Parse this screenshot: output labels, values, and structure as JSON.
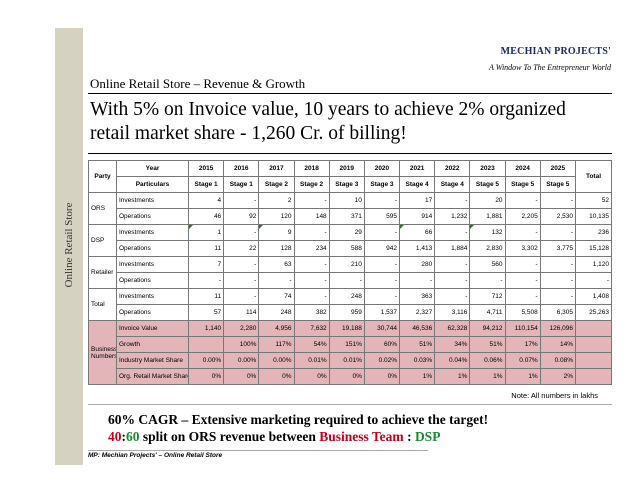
{
  "sidebar": {
    "label": "Online Retail Store"
  },
  "brand": {
    "name": "MECHIAN PROJECTS'",
    "tagline": "A Window To The Entrepreneur World"
  },
  "subtitle": "Online Retail Store – Revenue & Growth",
  "title": "With 5% on Invoice value, 10 years to achieve 2% organized retail market share - 1,260 Cr. of billing!",
  "table": {
    "header_party": "Party",
    "header_year": "Year",
    "header_particulars": "Particulars",
    "header_total": "Total",
    "years": [
      "2015",
      "2016",
      "2017",
      "2018",
      "2019",
      "2020",
      "2021",
      "2022",
      "2023",
      "2024",
      "2025"
    ],
    "stages": [
      "Stage 1",
      "Stage 1",
      "Stage 2",
      "Stage 2",
      "Stage 3",
      "Stage 3",
      "Stage 4",
      "Stage 4",
      "Stage 5",
      "Stage 5",
      "Stage 5"
    ],
    "groups": [
      {
        "party": "ORS",
        "rows": [
          {
            "label": "Investments",
            "values": [
              "4",
              "-",
              "2",
              "-",
              "10",
              "-",
              "17",
              "-",
              "20",
              "-",
              "-"
            ],
            "total": "52"
          },
          {
            "label": "Operations",
            "values": [
              "46",
              "92",
              "120",
              "148",
              "371",
              "595",
              "914",
              "1,232",
              "1,881",
              "2,205",
              "2,530"
            ],
            "total": "10,135"
          }
        ]
      },
      {
        "party": "DSP",
        "rows": [
          {
            "label": "Investments",
            "values": [
              "1",
              "-",
              "9",
              "-",
              "29",
              "-",
              "66",
              "-",
              "132",
              "-",
              "-"
            ],
            "total": "236"
          },
          {
            "label": "Operations",
            "values": [
              "11",
              "22",
              "128",
              "234",
              "588",
              "942",
              "1,413",
              "1,884",
              "2,830",
              "3,302",
              "3,775"
            ],
            "total": "15,128"
          }
        ]
      },
      {
        "party": "Retailer",
        "rows": [
          {
            "label": "Investments",
            "values": [
              "7",
              "-",
              "63",
              "-",
              "210",
              "-",
              "280",
              "-",
              "560",
              "-",
              "-"
            ],
            "total": "1,120"
          },
          {
            "label": "Operations",
            "values": [
              "-",
              "-",
              "-",
              "-",
              "-",
              "-",
              "-",
              "-",
              "-",
              "-",
              "-"
            ],
            "total": "-"
          }
        ]
      },
      {
        "party": "Total",
        "rows": [
          {
            "label": "Investments",
            "values": [
              "11",
              "-",
              "74",
              "-",
              "248",
              "-",
              "363",
              "-",
              "712",
              "-",
              "-"
            ],
            "total": "1,408"
          },
          {
            "label": "Operations",
            "values": [
              "57",
              "114",
              "248",
              "382",
              "959",
              "1,537",
              "2,327",
              "3,116",
              "4,711",
              "5,508",
              "6,305"
            ],
            "total": "25,263"
          }
        ]
      }
    ],
    "business": {
      "label": "Business Numbers",
      "rows": [
        {
          "label": "Invoice Value",
          "values": [
            "1,140",
            "2,280",
            "4,956",
            "7,632",
            "19,188",
            "30,744",
            "46,536",
            "62,328",
            "94,212",
            "110,154",
            "126,096"
          ]
        },
        {
          "label": "Growth",
          "values": [
            "",
            "100%",
            "117%",
            "54%",
            "151%",
            "60%",
            "51%",
            "34%",
            "51%",
            "17%",
            "14%"
          ]
        },
        {
          "label": "Industry Market Share",
          "values": [
            "0.00%",
            "0.00%",
            "0.00%",
            "0.01%",
            "0.01%",
            "0.02%",
            "0.03%",
            "0.04%",
            "0.06%",
            "0.07%",
            "0.08%"
          ]
        },
        {
          "label": "Org. Retail Market Share",
          "values": [
            "0%",
            "0%",
            "0%",
            "0%",
            "0%",
            "0%",
            "1%",
            "1%",
            "1%",
            "1%",
            "2%"
          ]
        }
      ]
    }
  },
  "note": "Note: All numbers in lakhs",
  "cagr": {
    "line1": "60% CAGR – Extensive marketing required to achieve the target!",
    "ors_share": "40",
    "sep": ":",
    "dsp_share": "60",
    "line2_mid": " split on ORS revenue between ",
    "business_team": "Business Team",
    "colon": " : ",
    "dsp": "DSP"
  },
  "footer": "MP: Mechian Projects' – Online Retail Store",
  "colors": {
    "brand": "#1a2a6b",
    "highlight": "#e3b4b8",
    "red": "#c0001a",
    "green": "#188a2f",
    "sidebar": "#d6d2c2"
  }
}
